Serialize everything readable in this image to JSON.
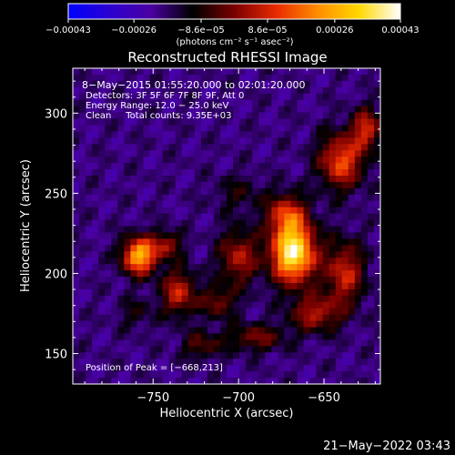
{
  "chart_data": {
    "type": "heatmap",
    "title": "Reconstructed RHESSI Image",
    "xlabel": "Heliocentric X (arcsec)",
    "ylabel": "Heliocentric Y (arcsec)",
    "xlim": [
      -797,
      -617
    ],
    "ylim": [
      131,
      328
    ],
    "x_ticks": [
      -750,
      -700,
      -650
    ],
    "x_tick_labels": [
      "−750",
      "−700",
      "−650"
    ],
    "y_ticks": [
      150,
      200,
      250,
      300
    ],
    "y_tick_labels": [
      "150",
      "200",
      "250",
      "300"
    ],
    "colorbar": {
      "min": -0.00043,
      "max": 0.00043,
      "ticks": [
        -0.00043,
        -0.00026,
        -8.6e-05,
        8.6e-05,
        0.00026,
        0.00043
      ],
      "tick_labels": [
        "−0.00043",
        "−0.00026",
        "−8.6e−05",
        "8.6e−05",
        "0.00026",
        "0.00043"
      ],
      "units_label": "(photons cm⁻² s⁻¹ asec⁻²)",
      "colormap": [
        "#0000ff",
        "#2d00d0",
        "#4a00a0",
        "#000000",
        "#7a0000",
        "#e82a00",
        "#ff8c00",
        "#ffd800",
        "#ffffff"
      ]
    },
    "annotations": [
      "8−May−2015 01:55:20.000 to 02:01:20.000",
      "Detectors: 3F 5F 6F 7F 8F 9F, Att 0",
      "Energy Range: 12.0 − 25.0 keV",
      "Clean     Total counts: 9.35E+03"
    ],
    "peak_label": "Position of Peak = [−668,213]",
    "peak": [
      -668,
      213
    ],
    "sources": [
      {
        "x": -668,
        "y": 213,
        "amp": 1.0,
        "sx": 9,
        "sy": 13
      },
      {
        "x": -672,
        "y": 237,
        "amp": 0.45,
        "sx": 8,
        "sy": 9
      },
      {
        "x": -758,
        "y": 211,
        "amp": 0.8,
        "sx": 7,
        "sy": 8
      },
      {
        "x": -742,
        "y": 218,
        "amp": 0.35,
        "sx": 6,
        "sy": 6
      },
      {
        "x": -735,
        "y": 188,
        "amp": 0.45,
        "sx": 7,
        "sy": 10
      },
      {
        "x": -700,
        "y": 210,
        "amp": 0.4,
        "sx": 8,
        "sy": 12
      },
      {
        "x": -712,
        "y": 182,
        "amp": 0.3,
        "sx": 7,
        "sy": 7
      },
      {
        "x": -640,
        "y": 270,
        "amp": 0.55,
        "sx": 9,
        "sy": 12
      },
      {
        "x": -625,
        "y": 290,
        "amp": 0.45,
        "sx": 6,
        "sy": 9
      },
      {
        "x": -638,
        "y": 200,
        "amp": 0.45,
        "sx": 8,
        "sy": 14
      },
      {
        "x": -655,
        "y": 175,
        "amp": 0.4,
        "sx": 10,
        "sy": 8
      },
      {
        "x": -690,
        "y": 160,
        "amp": 0.3,
        "sx": 12,
        "sy": 6
      },
      {
        "x": -722,
        "y": 155,
        "amp": 0.25,
        "sx": 8,
        "sy": 6
      },
      {
        "x": -760,
        "y": 175,
        "amp": 0.15,
        "sx": 7,
        "sy": 7
      },
      {
        "x": -700,
        "y": 250,
        "amp": 0.15,
        "sx": 10,
        "sy": 8
      }
    ]
  },
  "timestamp": "21−May−2022 03:43"
}
